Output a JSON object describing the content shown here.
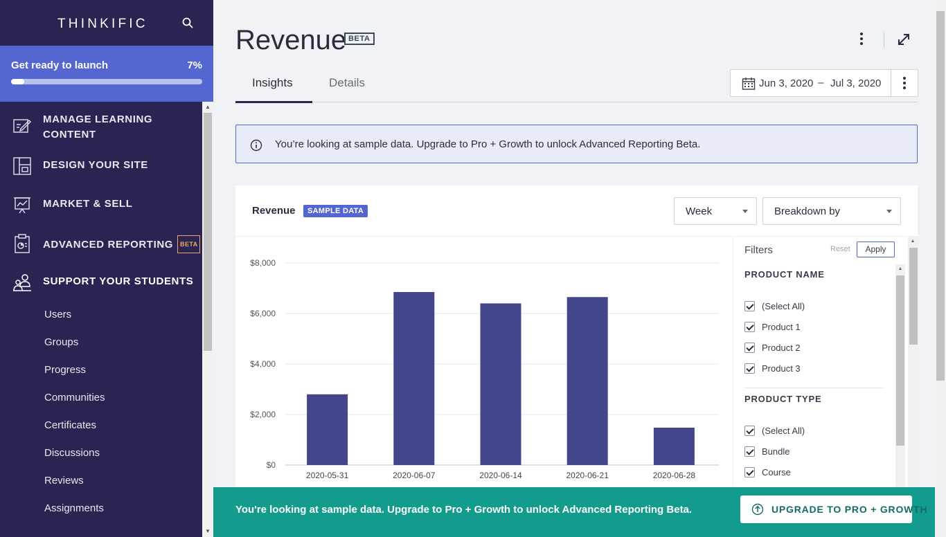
{
  "brand": {
    "logo_text": "THINKIFIC"
  },
  "launch": {
    "title": "Get ready to launch",
    "percent_label": "7%",
    "progress": 0.07
  },
  "sidebar": {
    "sections": [
      {
        "label": "MANAGE LEARNING CONTENT",
        "icon": "edit-content-icon"
      },
      {
        "label": "DESIGN YOUR SITE",
        "icon": "layout-icon"
      },
      {
        "label": "MARKET & SELL",
        "icon": "chart-presentation-icon"
      },
      {
        "label": "ADVANCED REPORTING",
        "icon": "report-clipboard-icon",
        "badge": "BETA"
      },
      {
        "label": "SUPPORT YOUR STUDENTS",
        "icon": "students-icon"
      }
    ],
    "sub_items": [
      "Users",
      "Groups",
      "Progress",
      "Communities",
      "Certificates",
      "Discussions",
      "Reviews",
      "Assignments"
    ]
  },
  "header": {
    "title": "Revenue",
    "badge": "BETA"
  },
  "tabs": [
    {
      "label": "Insights",
      "active": true
    },
    {
      "label": "Details",
      "active": false
    }
  ],
  "date_range": {
    "start": "Jun 3, 2020",
    "separator": "–",
    "end": "Jul 3, 2020"
  },
  "info_banner": {
    "text": "You’re looking at sample data. Upgrade to Pro + Growth to unlock Advanced Reporting Beta."
  },
  "card": {
    "title": "Revenue",
    "badge": "SAMPLE DATA",
    "period_select": "Week",
    "breakdown_select": "Breakdown by"
  },
  "filters": {
    "title": "Filters",
    "reset_label": "Reset",
    "apply_label": "Apply",
    "groups": [
      {
        "name": "PRODUCT NAME",
        "options": [
          "(Select All)",
          "Product 1",
          "Product 2",
          "Product 3"
        ]
      },
      {
        "name": "PRODUCT TYPE",
        "options": [
          "(Select All)",
          "Bundle",
          "Course"
        ]
      }
    ]
  },
  "chart_data": {
    "type": "bar",
    "categories": [
      "2020-05-31",
      "2020-06-07",
      "2020-06-14",
      "2020-06-21",
      "2020-06-28"
    ],
    "values": [
      2800,
      6850,
      6400,
      6650,
      1480
    ],
    "yticks": [
      "$8,000",
      "$6,000",
      "$4,000",
      "$2,000",
      "$0"
    ],
    "ylim": [
      0,
      8000
    ],
    "bar_color": "#43468a",
    "grid": true
  },
  "upgrade_bar": {
    "text": "You're looking at sample data. Upgrade to Pro + Growth to unlock Advanced Reporting Beta.",
    "button_label": "UPGRADE TO PRO + GROWTH"
  },
  "colors": {
    "sidebar_bg": "#2a2452",
    "launch_bg": "#5466d0",
    "upgrade_bg": "#139b8d",
    "accent": "#5466d0"
  }
}
